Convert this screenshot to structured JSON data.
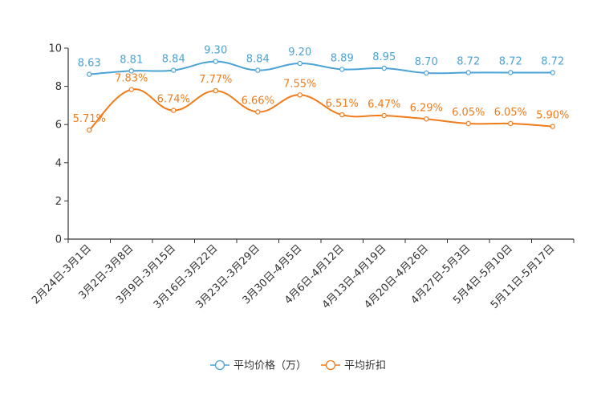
{
  "chart_data": {
    "type": "line",
    "categories": [
      "2月24日-3月1日",
      "3月2日-3月8日",
      "3月9日-3月15日",
      "3月16日-3月22日",
      "3月23日-3月29日",
      "3月30日-4月5日",
      "4月6日-4月12日",
      "4月13日-4月19日",
      "4月20日-4月26日",
      "4月27日-5月3日",
      "5月4日-5月10日",
      "5月11日-5月17日"
    ],
    "yticks": [
      "0",
      "2",
      "4",
      "6",
      "8",
      "10"
    ],
    "ylim": [
      0,
      10
    ],
    "series": [
      {
        "name": "平均价格（万）",
        "color": "#4aa3d4",
        "values": [
          8.63,
          8.81,
          8.84,
          9.3,
          8.84,
          9.2,
          8.89,
          8.95,
          8.7,
          8.72,
          8.72,
          8.72
        ],
        "labels": [
          "8.63",
          "8.81",
          "8.84",
          "9.30",
          "8.84",
          "9.20",
          "8.89",
          "8.95",
          "8.70",
          "8.72",
          "8.72",
          "8.72"
        ]
      },
      {
        "name": "平均折扣",
        "color": "#f07c1b",
        "values": [
          5.71,
          7.83,
          6.74,
          7.77,
          6.66,
          7.55,
          6.51,
          6.47,
          6.29,
          6.05,
          6.05,
          5.9
        ],
        "labels": [
          "5.71%",
          "7.83%",
          "6.74%",
          "7.77%",
          "6.66%",
          "7.55%",
          "6.51%",
          "6.47%",
          "6.29%",
          "6.05%",
          "6.05%",
          "5.90%"
        ]
      }
    ],
    "legend_position": "bottom-center"
  }
}
